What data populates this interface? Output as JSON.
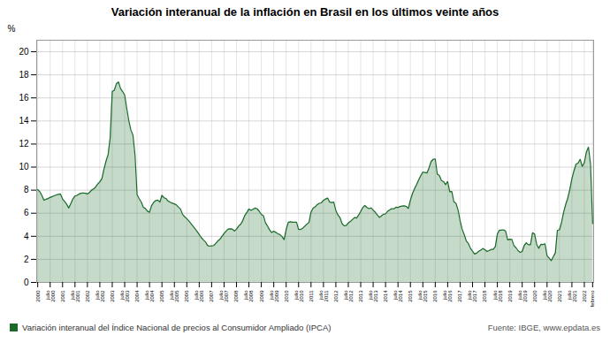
{
  "chart_data": {
    "type": "area",
    "title": "Variación interanual de la inflación en Brasil en los últimos veinte años",
    "ylabel": "%",
    "caption": "Fuente: IBGE, www.epdata.es",
    "legend": "bottom",
    "grid": true,
    "ylim": [
      0,
      21
    ],
    "yticks": [
      0,
      2,
      4,
      6,
      8,
      10,
      12,
      14,
      16,
      18,
      20
    ],
    "categories": [
      "2000",
      null,
      null,
      null,
      null,
      null,
      "julio\n2000",
      null,
      null,
      null,
      null,
      null,
      "2001",
      null,
      null,
      null,
      null,
      null,
      "julio\n2001",
      null,
      null,
      null,
      null,
      null,
      "2002",
      null,
      null,
      null,
      null,
      null,
      "julio\n2002",
      null,
      null,
      null,
      null,
      null,
      "2003",
      null,
      null,
      null,
      null,
      null,
      "julio\n2003",
      null,
      null,
      null,
      null,
      null,
      "2004",
      null,
      null,
      null,
      null,
      null,
      "julio\n2004",
      null,
      null,
      null,
      null,
      null,
      "2005",
      null,
      null,
      null,
      null,
      null,
      "julio\n2005",
      null,
      null,
      null,
      null,
      null,
      "2006",
      null,
      null,
      null,
      null,
      null,
      "julio\n2006",
      null,
      null,
      null,
      null,
      null,
      "2007",
      null,
      null,
      null,
      null,
      null,
      "julio\n2007",
      null,
      null,
      null,
      null,
      null,
      "2008",
      null,
      null,
      null,
      null,
      null,
      "julio\n2008",
      null,
      null,
      null,
      null,
      null,
      "2009",
      null,
      null,
      null,
      null,
      null,
      "julio\n2009",
      null,
      null,
      null,
      null,
      null,
      "2010",
      null,
      null,
      null,
      null,
      null,
      "julio\n2010",
      null,
      null,
      null,
      null,
      null,
      "2011",
      null,
      null,
      null,
      null,
      null,
      "julio\n2011",
      null,
      null,
      null,
      null,
      null,
      "2012",
      null,
      null,
      null,
      null,
      null,
      "julio\n2012",
      null,
      null,
      null,
      null,
      null,
      "2013",
      null,
      null,
      null,
      null,
      null,
      "julio\n2013",
      null,
      null,
      null,
      null,
      null,
      "2014",
      null,
      null,
      null,
      null,
      null,
      "julio\n2014",
      null,
      null,
      null,
      null,
      null,
      "2015",
      null,
      null,
      null,
      null,
      null,
      "julio\n2015",
      null,
      null,
      null,
      null,
      null,
      "2016",
      null,
      null,
      null,
      null,
      null,
      "julio\n2016",
      null,
      null,
      null,
      null,
      null,
      "2017",
      null,
      null,
      null,
      null,
      null,
      "julio\n2017",
      null,
      null,
      null,
      null,
      null,
      "2018",
      null,
      null,
      null,
      null,
      null,
      "julio\n2018",
      null,
      null,
      null,
      null,
      null,
      "2019",
      null,
      null,
      null,
      null,
      null,
      "julio\n2019",
      null,
      null,
      null,
      null,
      null,
      "2020",
      null,
      null,
      null,
      null,
      null,
      "julio\n2020",
      null,
      null,
      null,
      null,
      null,
      "2021",
      null,
      null,
      null,
      null,
      null,
      "julio\n2021",
      null,
      null,
      null,
      null,
      null,
      "2022",
      null,
      null,
      null,
      "febrero"
    ],
    "series": [
      {
        "name": "Variación interanual del Índice Nacional de precios al Consumidor Ampliado (IPCA)",
        "color": "#1a6b2a",
        "values": [
          8.05,
          7.87,
          7.55,
          7.13,
          7.21,
          7.27,
          7.37,
          7.44,
          7.51,
          7.59,
          7.63,
          7.67,
          7.24,
          7.02,
          6.77,
          6.45,
          6.84,
          7.25,
          7.49,
          7.55,
          7.67,
          7.73,
          7.76,
          7.73,
          7.67,
          7.8,
          8.0,
          8.1,
          8.28,
          8.53,
          8.73,
          9.0,
          9.82,
          10.52,
          11.08,
          12.55,
          16.55,
          16.67,
          17.22,
          17.38,
          16.81,
          16.55,
          16.25,
          15.1,
          14.02,
          13.21,
          12.77,
          11.02,
          7.6,
          7.26,
          6.97,
          6.52,
          6.41,
          6.18,
          6.08,
          6.66,
          6.94,
          7.1,
          7.14,
          6.97,
          7.55,
          7.34,
          7.27,
          7.05,
          6.95,
          6.87,
          6.81,
          6.72,
          6.53,
          6.35,
          5.89,
          5.69,
          5.53,
          5.34,
          5.1,
          4.88,
          4.64,
          4.41,
          4.15,
          3.89,
          3.69,
          3.52,
          3.21,
          3.14,
          3.17,
          3.2,
          3.38,
          3.6,
          3.74,
          3.99,
          4.24,
          4.45,
          4.63,
          4.64,
          4.62,
          4.46,
          4.61,
          4.88,
          5.04,
          5.34,
          5.8,
          6.06,
          6.37,
          6.25,
          6.34,
          6.45,
          6.38,
          6.17,
          5.9,
          5.79,
          5.16,
          4.89,
          4.55,
          4.32,
          4.45,
          4.34,
          4.22,
          4.15,
          3.97,
          3.71,
          4.59,
          5.2,
          5.26,
          5.22,
          5.22,
          5.22,
          4.6,
          4.59,
          4.7,
          4.88,
          5.05,
          5.2,
          6.1,
          6.44,
          6.55,
          6.75,
          6.86,
          6.9,
          7.11,
          7.23,
          7.31,
          6.97,
          6.93,
          6.96,
          6.22,
          5.85,
          5.61,
          5.1,
          4.92,
          4.93,
          5.16,
          5.28,
          5.45,
          5.62,
          5.58,
          5.84,
          6.15,
          6.49,
          6.67,
          6.5,
          6.4,
          6.46,
          6.27,
          6.09,
          5.86,
          5.64,
          5.77,
          5.91,
          5.94,
          6.17,
          6.28,
          6.4,
          6.37,
          6.52,
          6.5,
          6.58,
          6.62,
          6.64,
          6.59,
          6.41,
          7.14,
          7.7,
          8.13,
          8.49,
          8.89,
          9.25,
          9.56,
          9.53,
          9.49,
          9.93,
          10.48,
          10.67,
          10.71,
          9.39,
          9.28,
          8.84,
          8.74,
          8.48,
          8.74,
          7.87,
          7.88,
          6.99,
          6.86,
          6.29,
          5.35,
          4.61,
          4.14,
          3.6,
          3.38,
          2.96,
          2.71,
          2.46,
          2.54,
          2.7,
          2.8,
          2.94,
          2.84,
          2.68,
          2.76,
          2.86,
          2.86,
          3.09,
          4.19,
          4.53,
          4.53,
          4.56,
          4.44,
          3.69,
          3.75,
          3.73,
          3.19,
          3.01,
          2.76,
          2.6,
          2.68,
          3.22,
          3.43,
          3.27,
          3.26,
          4.31,
          4.19,
          3.3,
          2.96,
          3.3,
          3.28,
          3.35,
          2.31,
          2.11,
          1.88,
          2.22,
          2.56,
          4.52,
          4.56,
          5.2,
          6.08,
          6.76,
          7.3,
          8.06,
          8.99,
          9.68,
          10.25,
          10.35,
          10.67,
          10.06,
          10.38,
          11.3,
          11.73,
          10.25,
          5.1
        ]
      }
    ]
  }
}
